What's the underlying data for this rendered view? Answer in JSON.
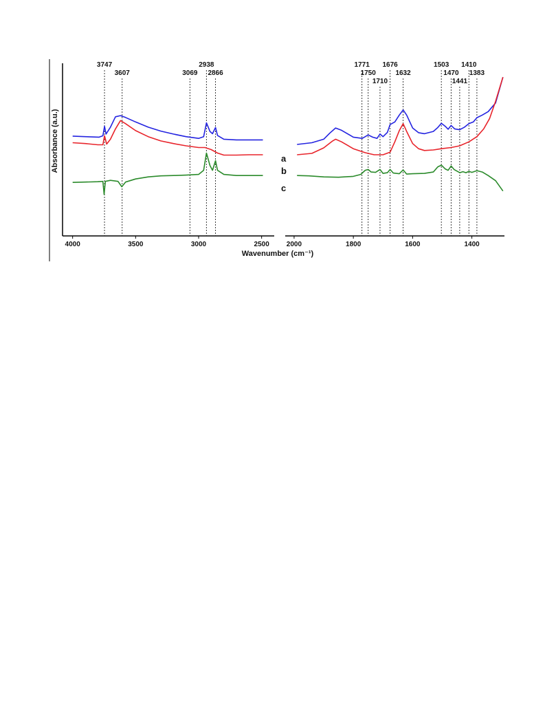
{
  "chart_data": {
    "type": "line",
    "title": "",
    "xlabel": "Wavenumber (cm⁻¹)",
    "ylabel": "Absorbance (a.u.)",
    "x_reversed": true,
    "y_ticks_shown": false,
    "grid": false,
    "legend": "none",
    "panels": [
      {
        "id": "high",
        "xlim": [
          4080,
          2400
        ],
        "xticks": [
          4000,
          3500,
          3000,
          2500
        ],
        "peak_markers": [
          {
            "x": 3747,
            "label": "3747",
            "row": 0
          },
          {
            "x": 3607,
            "label": "3607",
            "row": 1
          },
          {
            "x": 3069,
            "label": "3069",
            "row": 1
          },
          {
            "x": 2938,
            "label": "2938",
            "row": 0
          },
          {
            "x": 2866,
            "label": "2866",
            "row": 1
          }
        ],
        "series": [
          {
            "id": "a",
            "color": "#2323e0",
            "points": [
              [
                4000,
                0.578
              ],
              [
                3900,
                0.575
              ],
              [
                3790,
                0.572
              ],
              [
                3760,
                0.58
              ],
              [
                3747,
                0.635
              ],
              [
                3735,
                0.59
              ],
              [
                3700,
                0.63
              ],
              [
                3660,
                0.69
              ],
              [
                3620,
                0.697
              ],
              [
                3580,
                0.686
              ],
              [
                3500,
                0.66
              ],
              [
                3400,
                0.63
              ],
              [
                3300,
                0.607
              ],
              [
                3200,
                0.59
              ],
              [
                3100,
                0.575
              ],
              [
                3000,
                0.565
              ],
              [
                2960,
                0.575
              ],
              [
                2938,
                0.655
              ],
              [
                2910,
                0.605
              ],
              [
                2890,
                0.592
              ],
              [
                2866,
                0.628
              ],
              [
                2850,
                0.582
              ],
              [
                2800,
                0.56
              ],
              [
                2700,
                0.556
              ],
              [
                2550,
                0.556
              ],
              [
                2490,
                0.556
              ]
            ]
          },
          {
            "id": "b",
            "color": "#e8232a",
            "points": [
              [
                4000,
                0.54
              ],
              [
                3900,
                0.535
              ],
              [
                3800,
                0.528
              ],
              [
                3760,
                0.528
              ],
              [
                3747,
                0.58
              ],
              [
                3730,
                0.532
              ],
              [
                3700,
                0.56
              ],
              [
                3660,
                0.62
              ],
              [
                3620,
                0.668
              ],
              [
                3580,
                0.65
              ],
              [
                3500,
                0.61
              ],
              [
                3400,
                0.575
              ],
              [
                3300,
                0.55
              ],
              [
                3200,
                0.535
              ],
              [
                3100,
                0.522
              ],
              [
                3000,
                0.512
              ],
              [
                2950,
                0.512
              ],
              [
                2900,
                0.5
              ],
              [
                2850,
                0.48
              ],
              [
                2800,
                0.468
              ],
              [
                2700,
                0.468
              ],
              [
                2600,
                0.47
              ],
              [
                2490,
                0.47
              ]
            ]
          },
          {
            "id": "c",
            "color": "#2a8a2a",
            "points": [
              [
                4000,
                0.31
              ],
              [
                3900,
                0.312
              ],
              [
                3800,
                0.314
              ],
              [
                3760,
                0.316
              ],
              [
                3750,
                0.24
              ],
              [
                3740,
                0.316
              ],
              [
                3700,
                0.322
              ],
              [
                3640,
                0.316
              ],
              [
                3610,
                0.285
              ],
              [
                3580,
                0.312
              ],
              [
                3500,
                0.33
              ],
              [
                3400,
                0.342
              ],
              [
                3300,
                0.348
              ],
              [
                3200,
                0.35
              ],
              [
                3100,
                0.352
              ],
              [
                3000,
                0.356
              ],
              [
                2960,
                0.38
              ],
              [
                2938,
                0.48
              ],
              [
                2910,
                0.408
              ],
              [
                2890,
                0.38
              ],
              [
                2866,
                0.436
              ],
              [
                2850,
                0.38
              ],
              [
                2800,
                0.356
              ],
              [
                2700,
                0.35
              ],
              [
                2600,
                0.35
              ],
              [
                2490,
                0.35
              ]
            ]
          }
        ]
      },
      {
        "id": "low",
        "xlim": [
          2030,
          1290
        ],
        "xticks": [
          2000,
          1800,
          1600,
          1400
        ],
        "peak_markers": [
          {
            "x": 1771,
            "label": "1771",
            "row": 0
          },
          {
            "x": 1750,
            "label": "1750",
            "row": 1
          },
          {
            "x": 1710,
            "label": "1710",
            "row": 2
          },
          {
            "x": 1676,
            "label": "1676",
            "row": 0
          },
          {
            "x": 1632,
            "label": "1632",
            "row": 1
          },
          {
            "x": 1503,
            "label": "1503",
            "row": 0
          },
          {
            "x": 1470,
            "label": "1470",
            "row": 1
          },
          {
            "x": 1441,
            "label": "1441",
            "row": 2
          },
          {
            "x": 1410,
            "label": "1410",
            "row": 0
          },
          {
            "x": 1383,
            "label": "1383",
            "row": 1
          }
        ],
        "series": [
          {
            "id": "a",
            "color": "#2323e0",
            "points": [
              [
                1990,
                0.53
              ],
              [
                1940,
                0.54
              ],
              [
                1900,
                0.56
              ],
              [
                1880,
                0.595
              ],
              [
                1860,
                0.625
              ],
              [
                1840,
                0.612
              ],
              [
                1800,
                0.572
              ],
              [
                1770,
                0.565
              ],
              [
                1750,
                0.585
              ],
              [
                1735,
                0.572
              ],
              [
                1720,
                0.565
              ],
              [
                1710,
                0.59
              ],
              [
                1700,
                0.575
              ],
              [
                1685,
                0.6
              ],
              [
                1676,
                0.645
              ],
              [
                1660,
                0.66
              ],
              [
                1645,
                0.7
              ],
              [
                1632,
                0.73
              ],
              [
                1620,
                0.7
              ],
              [
                1600,
                0.625
              ],
              [
                1580,
                0.598
              ],
              [
                1560,
                0.592
              ],
              [
                1530,
                0.605
              ],
              [
                1515,
                0.628
              ],
              [
                1503,
                0.652
              ],
              [
                1490,
                0.635
              ],
              [
                1480,
                0.618
              ],
              [
                1470,
                0.64
              ],
              [
                1458,
                0.62
              ],
              [
                1441,
                0.615
              ],
              [
                1425,
                0.63
              ],
              [
                1410,
                0.65
              ],
              [
                1395,
                0.66
              ],
              [
                1383,
                0.685
              ],
              [
                1365,
                0.7
              ],
              [
                1345,
                0.72
              ],
              [
                1320,
                0.77
              ],
              [
                1295,
                0.92
              ]
            ]
          },
          {
            "id": "b",
            "color": "#e8232a",
            "points": [
              [
                1990,
                0.47
              ],
              [
                1940,
                0.478
              ],
              [
                1900,
                0.51
              ],
              [
                1870,
                0.55
              ],
              [
                1860,
                0.56
              ],
              [
                1840,
                0.545
              ],
              [
                1800,
                0.505
              ],
              [
                1760,
                0.482
              ],
              [
                1730,
                0.47
              ],
              [
                1700,
                0.47
              ],
              [
                1676,
                0.485
              ],
              [
                1660,
                0.545
              ],
              [
                1645,
                0.61
              ],
              [
                1632,
                0.65
              ],
              [
                1620,
                0.605
              ],
              [
                1600,
                0.535
              ],
              [
                1580,
                0.505
              ],
              [
                1560,
                0.495
              ],
              [
                1530,
                0.498
              ],
              [
                1503,
                0.505
              ],
              [
                1470,
                0.512
              ],
              [
                1441,
                0.522
              ],
              [
                1410,
                0.545
              ],
              [
                1383,
                0.575
              ],
              [
                1360,
                0.62
              ],
              [
                1340,
                0.68
              ],
              [
                1320,
                0.78
              ],
              [
                1295,
                0.92
              ]
            ]
          },
          {
            "id": "c",
            "color": "#2a8a2a",
            "points": [
              [
                1990,
                0.35
              ],
              [
                1950,
                0.348
              ],
              [
                1900,
                0.342
              ],
              [
                1850,
                0.34
              ],
              [
                1800,
                0.345
              ],
              [
                1775,
                0.356
              ],
              [
                1760,
                0.38
              ],
              [
                1750,
                0.385
              ],
              [
                1740,
                0.37
              ],
              [
                1725,
                0.368
              ],
              [
                1710,
                0.385
              ],
              [
                1700,
                0.362
              ],
              [
                1685,
                0.366
              ],
              [
                1676,
                0.385
              ],
              [
                1665,
                0.364
              ],
              [
                1645,
                0.36
              ],
              [
                1632,
                0.382
              ],
              [
                1620,
                0.358
              ],
              [
                1600,
                0.36
              ],
              [
                1560,
                0.362
              ],
              [
                1530,
                0.37
              ],
              [
                1515,
                0.4
              ],
              [
                1503,
                0.41
              ],
              [
                1490,
                0.388
              ],
              [
                1480,
                0.38
              ],
              [
                1470,
                0.405
              ],
              [
                1460,
                0.385
              ],
              [
                1445,
                0.37
              ],
              [
                1441,
                0.366
              ],
              [
                1430,
                0.372
              ],
              [
                1420,
                0.366
              ],
              [
                1410,
                0.374
              ],
              [
                1400,
                0.368
              ],
              [
                1383,
                0.378
              ],
              [
                1365,
                0.37
              ],
              [
                1345,
                0.35
              ],
              [
                1320,
                0.32
              ],
              [
                1295,
                0.26
              ]
            ]
          }
        ]
      }
    ],
    "curve_labels": [
      "a",
      "b",
      "c"
    ]
  }
}
